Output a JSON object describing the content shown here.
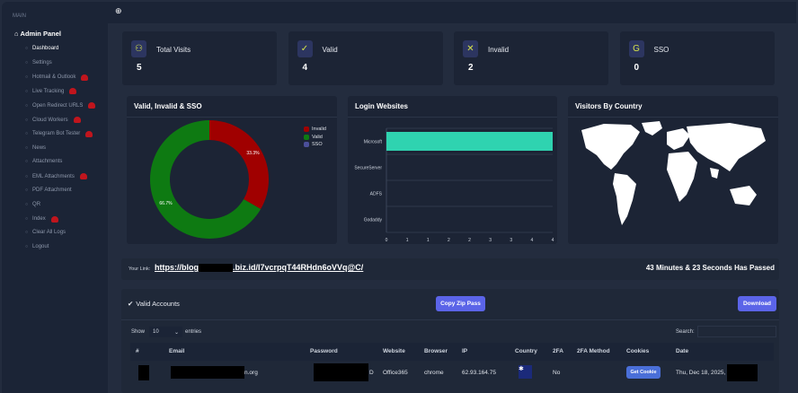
{
  "sidebar": {
    "section": "MAIN",
    "title": "Admin Panel",
    "items": [
      {
        "label": "Dashboard",
        "active": true,
        "badge": false
      },
      {
        "label": "Settings",
        "badge": false
      },
      {
        "label": "Hotmail & Outlook",
        "badge": true
      },
      {
        "label": "Live Tracking",
        "badge": true
      },
      {
        "label": "Open Redirect URLS",
        "badge": true
      },
      {
        "label": "Cloud Workers",
        "badge": true
      },
      {
        "label": "Telegram Bot Tester",
        "badge": true
      },
      {
        "label": "News",
        "badge": false
      },
      {
        "label": "Attachments",
        "badge": false
      },
      {
        "label": "EML Attachments",
        "badge": true
      },
      {
        "label": "PDF Attachment",
        "badge": false
      },
      {
        "label": "QR",
        "badge": false
      },
      {
        "label": "Index",
        "badge": true
      },
      {
        "label": "Clear All Logs",
        "badge": false
      },
      {
        "label": "Logout",
        "badge": false
      }
    ]
  },
  "stats": [
    {
      "label": "Total Visits",
      "value": "5",
      "icon": "users-icon"
    },
    {
      "label": "Valid",
      "value": "4",
      "icon": "shield-check-icon"
    },
    {
      "label": "Invalid",
      "value": "2",
      "icon": "shield-x-icon"
    },
    {
      "label": "SSO",
      "value": "0",
      "icon": "sso-icon"
    }
  ],
  "chart_data": [
    {
      "type": "pie",
      "title": "Valid, Invalid & SSO",
      "categories": [
        "Invalid",
        "Valid",
        "SSO"
      ],
      "values": [
        2,
        4,
        0
      ],
      "labels": [
        "33.3%",
        "66.7%",
        ""
      ],
      "colors": [
        "#a00000",
        "#0e7a12",
        "#4b4f9a"
      ],
      "donut": true,
      "legend": "top-right"
    },
    {
      "type": "bar",
      "orientation": "horizontal",
      "title": "Login Websites",
      "categories": [
        "Microsoft",
        "SecureServer",
        "ADFS",
        "Godaddy"
      ],
      "values": [
        4,
        0,
        0,
        0
      ],
      "xlim": [
        0,
        4
      ],
      "xticks": [
        "0",
        "1",
        "1",
        "2",
        "2",
        "3",
        "3",
        "4",
        "4"
      ],
      "color": "#2fd3b0",
      "grid": true
    }
  ],
  "map": {
    "title": "Visitors By Country"
  },
  "link": {
    "label": "Your Link:",
    "url_prefix": "https://blog",
    "url_suffix": ".biz.id/I7vcrpqT44RHdn6oVVq@C/",
    "elapsed": "43 Minutes & 23 Seconds Has Passed"
  },
  "accounts": {
    "title": "Valid Accounts",
    "copy_label": "Copy Zip Pass",
    "download_label": "Download",
    "show_label": "Show",
    "entries_value": "10",
    "entries_label": "entries",
    "search_label": "Search:",
    "columns": [
      "#",
      "Email",
      "Password",
      "Website",
      "Browser",
      "IP",
      "Country",
      "2FA",
      "2FA Method",
      "Cookies",
      "Date"
    ],
    "rows": [
      {
        "email_suffix": "n.org",
        "password_suffix": "D",
        "website": "Office365",
        "browser": "chrome",
        "ip": "62.93.164.75",
        "country": "Australia",
        "twofa": "No",
        "method": "",
        "cookie_btn": "Get Cookie",
        "date": "Thu, Dec 18, 2025,"
      }
    ]
  }
}
